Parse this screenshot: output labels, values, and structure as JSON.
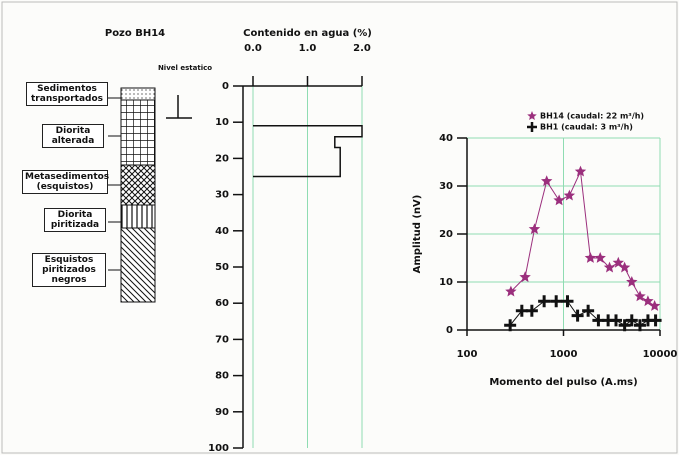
{
  "borehole": {
    "title": "Pozo BH14",
    "static_level": "Nivel estatico",
    "layers": [
      "Sedimentos transportados",
      "Diorita alterada",
      "Metasedimentos (esquistos)",
      "Diorita piritizada",
      "Esquistos piritizados negros"
    ]
  },
  "chart_data": [
    {
      "type": "line",
      "title": "Contenido en agua (%)",
      "xlim": [
        0,
        2
      ],
      "xticks": [
        {
          "value": 0,
          "label": "0.0"
        },
        {
          "value": 1,
          "label": "1.0"
        },
        {
          "value": 2,
          "label": "2.0"
        }
      ],
      "ylim": [
        100,
        0
      ],
      "yticks": [
        0,
        10,
        20,
        30,
        40,
        50,
        60,
        70,
        80,
        90,
        100
      ],
      "grid": "x",
      "grid_color": "#8fdcb2",
      "series": [
        {
          "color": "#111111",
          "x": [
            0,
            2,
            2,
            1.5,
            1.5,
            1.6,
            1.6,
            0
          ],
          "values": [
            11,
            11,
            14,
            14,
            17,
            17,
            25,
            25
          ]
        }
      ]
    },
    {
      "type": "line",
      "x_label": "Momento del pulso (A.ms)",
      "y_label": "Amplitud (nV)",
      "xscale": "log",
      "xlim": [
        100,
        10000
      ],
      "xticks": [
        100,
        1000,
        10000
      ],
      "ylim": [
        0,
        40
      ],
      "yticks": [
        0,
        10,
        20,
        30,
        40
      ],
      "grid": "both",
      "grid_color": "#8fdcb2",
      "legend": "upper right",
      "series": [
        {
          "name": "BH14 (caudal:  22 m³/h)",
          "color": "#9b2f7d",
          "marker": "star",
          "x": [
            285,
            400,
            500,
            670,
            900,
            1150,
            1500,
            1900,
            2400,
            3000,
            3700,
            4300,
            5100,
            6200,
            7500,
            8800
          ],
          "values": [
            8,
            11,
            21,
            31,
            27,
            28,
            33,
            15,
            15,
            13,
            14,
            13,
            10,
            7,
            6,
            5
          ]
        },
        {
          "name": "BH1  (caudal: 3 m³/h)",
          "color": "#111111",
          "marker": "plus",
          "x": [
            280,
            370,
            470,
            630,
            840,
            1100,
            1400,
            1800,
            2300,
            2900,
            3500,
            4300,
            5100,
            6200,
            7500,
            9000
          ],
          "values": [
            1,
            4,
            4,
            6,
            6,
            6,
            3,
            4,
            2,
            2,
            2,
            1,
            2,
            1,
            2,
            2
          ]
        }
      ]
    }
  ]
}
